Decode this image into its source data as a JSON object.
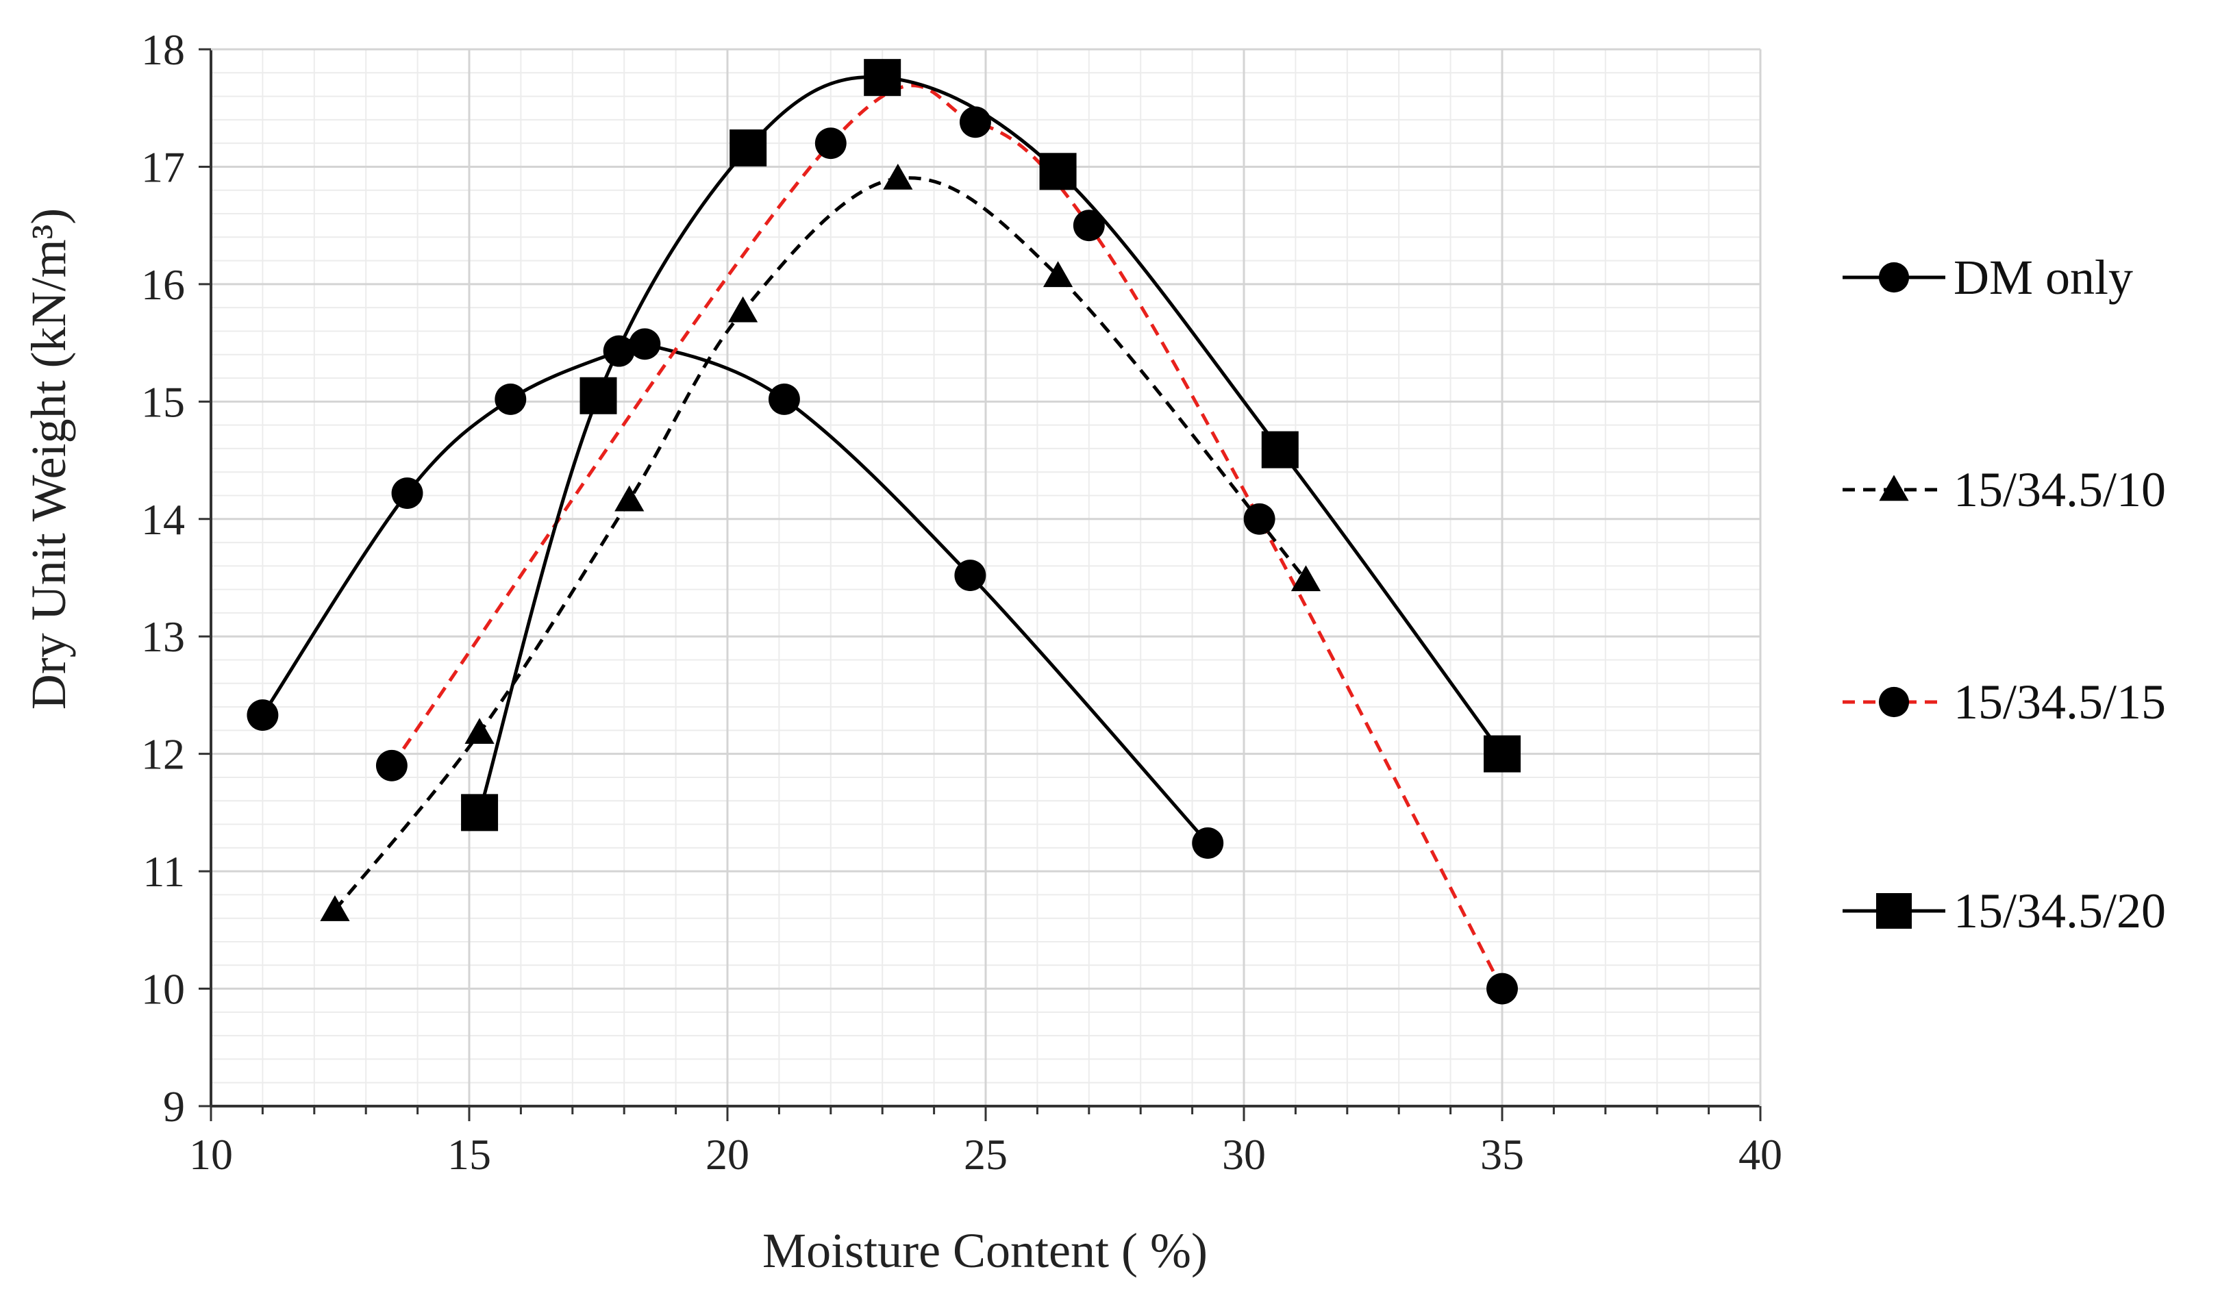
{
  "chart_data": {
    "type": "line",
    "title": "",
    "xlabel": "Moisture Content ( %)",
    "ylabel": "Dry Unit Weight (kN/m³)",
    "xlim": [
      10,
      40
    ],
    "ylim": [
      9,
      18
    ],
    "x_ticks": [
      "10",
      "15",
      "20",
      "25",
      "30",
      "35",
      "40"
    ],
    "y_ticks": [
      "9",
      "10",
      "11",
      "12",
      "13",
      "14",
      "15",
      "16",
      "17",
      "18"
    ],
    "grid": true,
    "legend_position": "right",
    "series": [
      {
        "name": "DM only",
        "marker": "circle",
        "line_style": "solid",
        "color": "#000000",
        "x": [
          11.0,
          13.8,
          15.8,
          17.9,
          18.4,
          21.1,
          24.7,
          29.3
        ],
        "y": [
          12.33,
          14.22,
          15.02,
          15.43,
          15.49,
          15.02,
          13.52,
          11.24
        ]
      },
      {
        "name": "15/34.5/10",
        "marker": "triangle",
        "line_style": "dashed",
        "color": "#000000",
        "x": [
          12.4,
          15.2,
          18.1,
          20.3,
          23.3,
          26.4,
          31.2
        ],
        "y": [
          10.67,
          12.18,
          14.16,
          15.77,
          16.9,
          16.07,
          13.48
        ]
      },
      {
        "name": "15/34.5/15",
        "marker": "circle",
        "line_style": "dashed",
        "color": "#e8211c",
        "x": [
          13.5,
          22.0,
          24.8,
          27.0,
          30.3,
          35.0
        ],
        "y": [
          11.9,
          17.2,
          17.38,
          16.5,
          14.0,
          10.0
        ]
      },
      {
        "name": "15/34.5/20",
        "marker": "square",
        "line_style": "solid",
        "color": "#000000",
        "x": [
          15.2,
          17.5,
          20.4,
          23.0,
          26.4,
          30.7,
          35.0
        ],
        "y": [
          11.5,
          15.05,
          17.16,
          17.76,
          16.96,
          14.59,
          12.0
        ]
      }
    ]
  }
}
